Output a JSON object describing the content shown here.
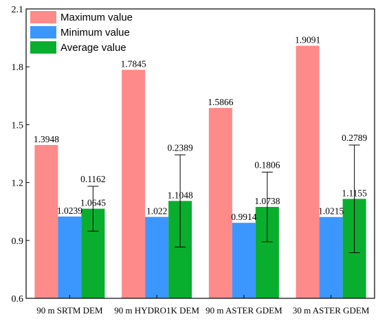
{
  "chart_data": {
    "type": "bar",
    "title": "",
    "xlabel": "",
    "ylabel": "",
    "ylim": [
      0.6,
      2.1
    ],
    "yticks": [
      "0.6",
      "0.9",
      "1.2",
      "1.5",
      "1.8",
      "2.1"
    ],
    "categories": [
      "90 m SRTM DEM",
      "90 m HYDRO1K DEM",
      "90 m ASTER GDEM",
      "30 m ASTER GDEM"
    ],
    "series": [
      {
        "name": "Maximum value",
        "color": "#fe8a8a",
        "values": [
          1.3948,
          1.7845,
          1.5866,
          1.9091
        ],
        "labels": [
          "1.3948",
          "1.7845",
          "1.5866",
          "1.9091"
        ]
      },
      {
        "name": "Minimum value",
        "color": "#3b97fe",
        "values": [
          1.0239,
          1.022,
          0.9914,
          1.0215
        ],
        "labels": [
          "1.0239",
          "1.022",
          "0.9914",
          "1.0215"
        ]
      },
      {
        "name": "Average value",
        "color": "#0aae2e",
        "values": [
          1.0645,
          1.1048,
          1.0738,
          1.1155
        ],
        "labels": [
          "1.0645",
          "1.1048",
          "1.0738",
          "1.1155"
        ],
        "error": [
          0.1162,
          0.2389,
          0.1806,
          0.2789
        ],
        "error_labels": [
          "0.1162",
          "0.2389",
          "0.1806",
          "0.2789"
        ]
      }
    ],
    "legend_position": "top-left",
    "grid": false
  }
}
